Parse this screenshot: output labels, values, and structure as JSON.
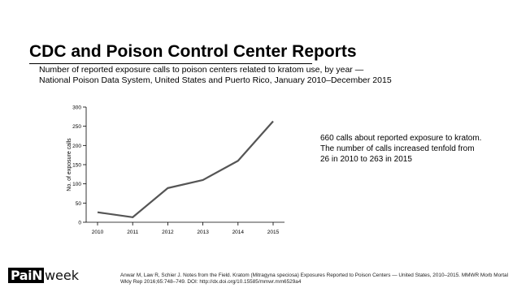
{
  "slide": {
    "title": "CDC and Poison Control Center Reports",
    "subtitle_line1": "Number of reported exposure calls to poison centers related to kratom use, by year —",
    "subtitle_line2": "National Poison Data System, United States and Puerto Rico, January 2010–December 2015",
    "summary": "660 calls about reported exposure to kratom. The number of calls increased tenfold from 26 in 2010 to 263 in 2015",
    "citation": "Anwar M, Law R, Schier J. Notes from the Field. Kratom (Mitragyna speciosa) Exposures Reported to Poison Centers — United States, 2010–2015. MMWR Morb Mortal Wkly Rep 2016;65:748–749. DOI: http://dx.doi.org/10.15585/mmwr.mm6529a4"
  },
  "logo": {
    "part1": "Pain",
    "part2": "Week"
  },
  "chart_data": {
    "type": "line",
    "x": [
      "2010",
      "2011",
      "2012",
      "2013",
      "2014",
      "2015"
    ],
    "series": [
      {
        "values": [
          26,
          13,
          89,
          110,
          160,
          263
        ]
      }
    ],
    "xlabel": "",
    "ylabel": "No. of exposure calls",
    "ylim": [
      0,
      300
    ],
    "yticks": [
      0,
      50,
      100,
      150,
      200,
      250,
      300
    ],
    "grid": false,
    "line_color": "#555555"
  }
}
